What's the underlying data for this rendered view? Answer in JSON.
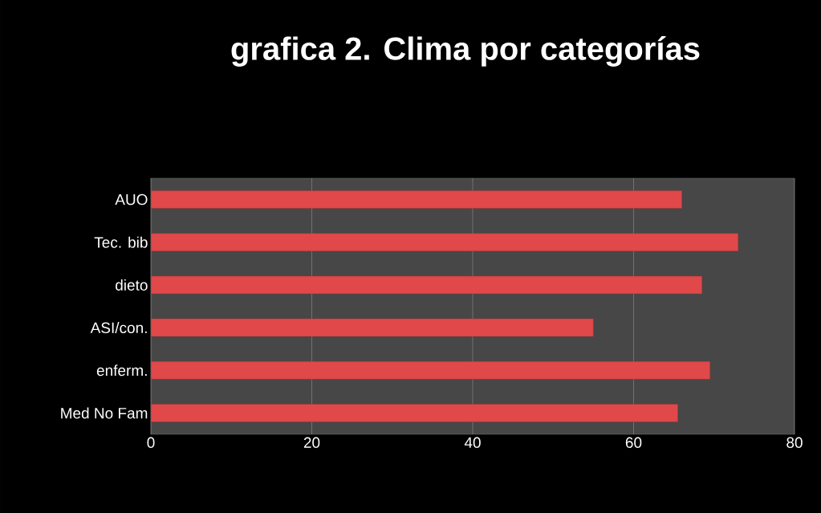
{
  "chart_data": {
    "type": "bar",
    "orientation": "horizontal",
    "title": "grafica 2. Clima por categorías",
    "categories": [
      "AUO",
      "Tec. bib",
      "dieto",
      "ASI/con.",
      "enferm.",
      "Med No Fam"
    ],
    "values": [
      66,
      73,
      68.5,
      55,
      69.5,
      65.5
    ],
    "color": "#e0484a",
    "xlim": [
      0,
      80
    ],
    "xticks": [
      0,
      20,
      40,
      60,
      80
    ],
    "grid": "x"
  }
}
